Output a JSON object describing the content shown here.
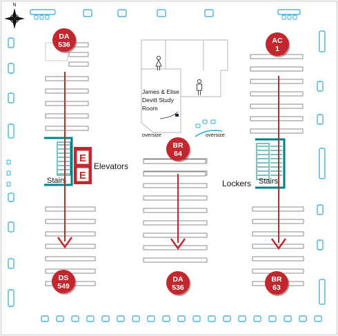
{
  "colors": {
    "call_badge": "#c1272d",
    "arrow": "#c1272d",
    "teal": "#007f86",
    "furniture": "#29a8d6",
    "shelf_stroke": "#8a8a8a",
    "room_stroke": "#b4b4b4",
    "elevator": "#c1272d"
  },
  "compass": {
    "north_label": "N",
    "icon": "compass-rose-icon"
  },
  "call_number_badges": [
    {
      "id": "badge-da-536-top",
      "line1": "DA",
      "line2": "536"
    },
    {
      "id": "badge-ac-1",
      "line1": "AC",
      "line2": "1"
    },
    {
      "id": "badge-br-64",
      "line1": "BR",
      "line2": "64"
    },
    {
      "id": "badge-ds-549",
      "line1": "DS",
      "line2": "549"
    },
    {
      "id": "badge-da-536-bottom",
      "line1": "DA",
      "line2": "536"
    },
    {
      "id": "badge-br-63",
      "line1": "BR",
      "line2": "63"
    }
  ],
  "labels": {
    "elevators": "Elevators",
    "stairs_left": "Stairs",
    "stairs_right": "Stairs",
    "lockers": "Lockers",
    "study_room_line1": "James & Elise",
    "study_room_line2": "Devitt Study",
    "study_room_line3": "Room",
    "oversize_left": "oversize",
    "oversize_right": "oversize",
    "elevator_letter": "E"
  },
  "restrooms": [
    {
      "icon": "womens-restroom-icon"
    },
    {
      "icon": "mens-restroom-icon"
    }
  ],
  "shelf_direction_arrows": [
    {
      "icon": "arrow-down-icon",
      "from": "DA 536",
      "to": "DS 549"
    },
    {
      "icon": "arrow-down-icon",
      "from": "BR 64",
      "to": "DA 536"
    },
    {
      "icon": "arrow-down-icon",
      "from": "AC 1",
      "to": "BR 63"
    }
  ]
}
